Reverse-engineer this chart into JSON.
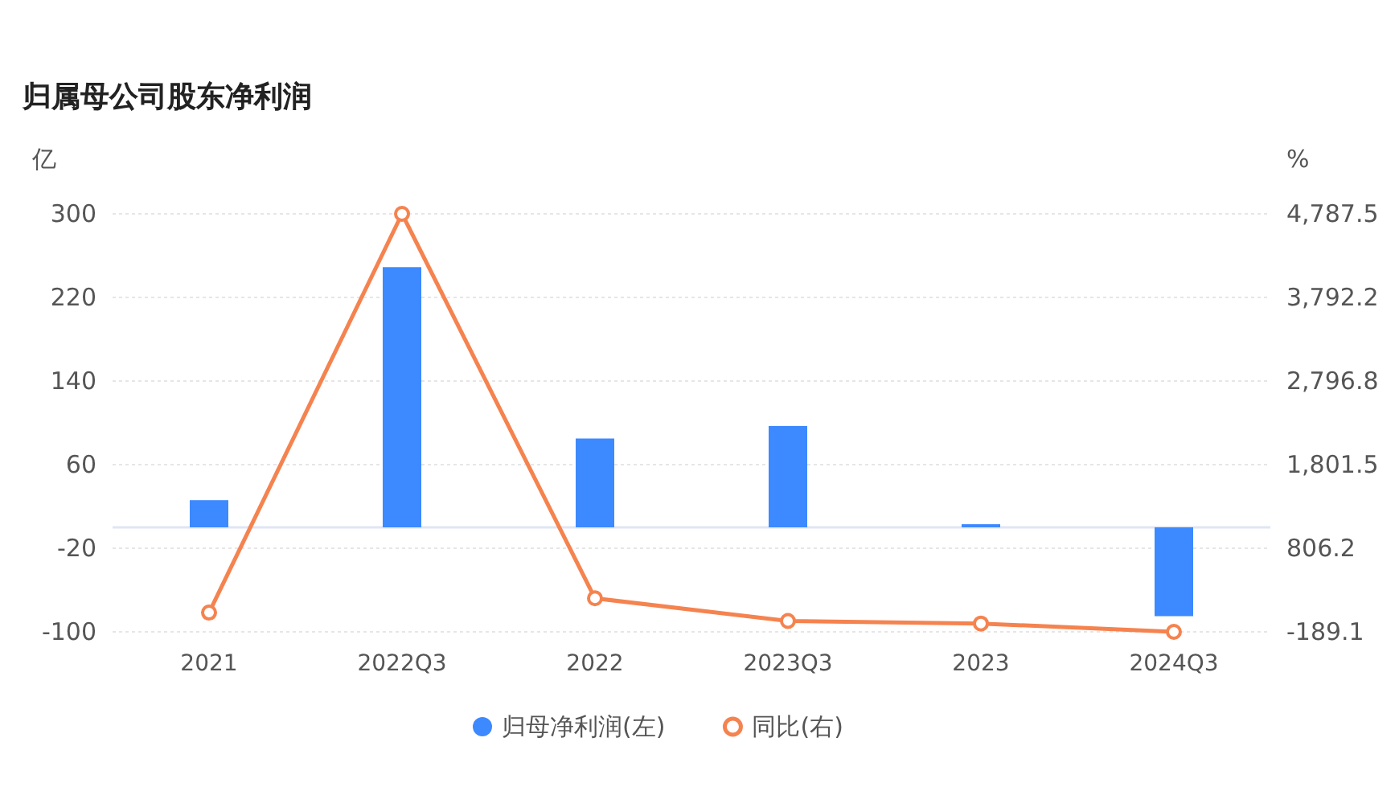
{
  "chart_data": {
    "type": "bar",
    "title": "归属母公司股东净利润",
    "ylabel": "亿",
    "y2label": "%",
    "categories": [
      "2021",
      "2022Q3",
      "2022",
      "2023Q3",
      "2023",
      "2024Q3"
    ],
    "series": [
      {
        "name": "归母净利润(左)",
        "color": "#3d89ff",
        "values": [
          26,
          249,
          85,
          97,
          3,
          -85
        ]
      },
      {
        "name": "同比(右)",
        "type": "line",
        "axis": "y2",
        "color": "#f5834f",
        "marker": "circle",
        "values": [
          40,
          4787.5,
          210,
          -60,
          -90,
          -189.1
        ]
      }
    ],
    "ylim": [
      -100,
      300
    ],
    "yticks": [
      -100,
      -20,
      60,
      140,
      220,
      300
    ],
    "y2lim": [
      -189.1,
      4787.5
    ],
    "y2ticks": [
      {
        "value": -189.1,
        "label": "-189.1"
      },
      {
        "value": 806.2,
        "label": "806.2"
      },
      {
        "value": 1801.5,
        "label": "1,801.5"
      },
      {
        "value": 2796.8,
        "label": "2,796.8"
      },
      {
        "value": 3792.2,
        "label": "3,792.2"
      },
      {
        "value": 4787.5,
        "label": "4,787.5"
      }
    ],
    "grid": "y",
    "legend": "bottom"
  }
}
